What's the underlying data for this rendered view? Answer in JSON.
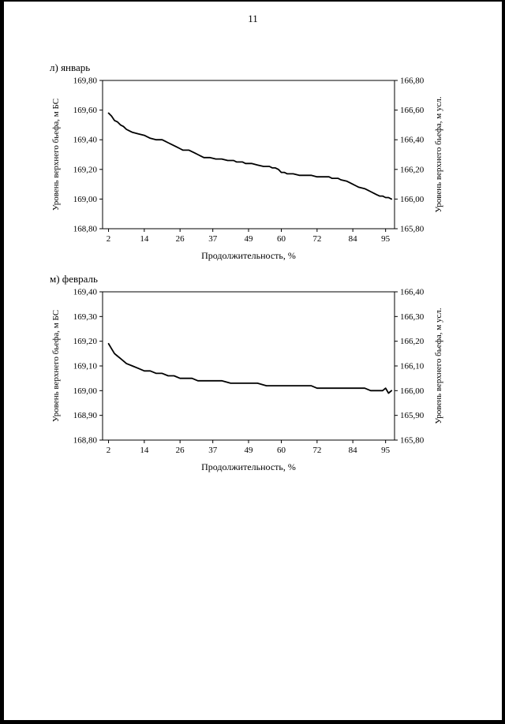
{
  "page": {
    "number": "11"
  },
  "chart_data": [
    {
      "type": "line",
      "title": "л) январь",
      "xlabel": "Продолжительность, %",
      "ylabel_left": "Уровень верхнего бьефа, м БС",
      "ylabel_right": "Уровень верхнего бьефа, м  усл.",
      "xlim": [
        0,
        98
      ],
      "xticks": [
        2,
        14,
        26,
        37,
        49,
        60,
        72,
        84,
        95
      ],
      "ylim_left": [
        168.8,
        169.8
      ],
      "ylim_right": [
        165.8,
        166.8
      ],
      "ytick_step": 0.2,
      "grid": false,
      "legend": false,
      "series": [
        {
          "points": [
            [
              2,
              169.58
            ],
            [
              3,
              169.56
            ],
            [
              4,
              169.53
            ],
            [
              5,
              169.52
            ],
            [
              6,
              169.5
            ],
            [
              7,
              169.49
            ],
            [
              8,
              169.47
            ],
            [
              9,
              169.46
            ],
            [
              10,
              169.45
            ],
            [
              12,
              169.44
            ],
            [
              14,
              169.43
            ],
            [
              15,
              169.42
            ],
            [
              16,
              169.41
            ],
            [
              18,
              169.4
            ],
            [
              20,
              169.4
            ],
            [
              21,
              169.39
            ],
            [
              22,
              169.38
            ],
            [
              23,
              169.37
            ],
            [
              24,
              169.36
            ],
            [
              25,
              169.35
            ],
            [
              26,
              169.34
            ],
            [
              27,
              169.33
            ],
            [
              29,
              169.33
            ],
            [
              31,
              169.31
            ],
            [
              32,
              169.3
            ],
            [
              33,
              169.29
            ],
            [
              34,
              169.28
            ],
            [
              36,
              169.28
            ],
            [
              38,
              169.27
            ],
            [
              40,
              169.27
            ],
            [
              42,
              169.26
            ],
            [
              44,
              169.26
            ],
            [
              45,
              169.25
            ],
            [
              47,
              169.25
            ],
            [
              48,
              169.24
            ],
            [
              50,
              169.24
            ],
            [
              52,
              169.23
            ],
            [
              54,
              169.22
            ],
            [
              56,
              169.22
            ],
            [
              57,
              169.21
            ],
            [
              58,
              169.21
            ],
            [
              59,
              169.2
            ],
            [
              60,
              169.18
            ],
            [
              61,
              169.18
            ],
            [
              62,
              169.17
            ],
            [
              64,
              169.17
            ],
            [
              66,
              169.16
            ],
            [
              68,
              169.16
            ],
            [
              70,
              169.16
            ],
            [
              72,
              169.15
            ],
            [
              74,
              169.15
            ],
            [
              76,
              169.15
            ],
            [
              77,
              169.14
            ],
            [
              79,
              169.14
            ],
            [
              80,
              169.13
            ],
            [
              82,
              169.12
            ],
            [
              83,
              169.11
            ],
            [
              84,
              169.1
            ],
            [
              85,
              169.09
            ],
            [
              86,
              169.08
            ],
            [
              88,
              169.07
            ],
            [
              89,
              169.06
            ],
            [
              90,
              169.05
            ],
            [
              91,
              169.04
            ],
            [
              92,
              169.03
            ],
            [
              93,
              169.02
            ],
            [
              94,
              169.02
            ],
            [
              95,
              169.01
            ],
            [
              96,
              169.01
            ],
            [
              97,
              169.0
            ]
          ]
        }
      ]
    },
    {
      "type": "line",
      "title": "м) февраль",
      "xlabel": "Продолжительность, %",
      "ylabel_left": "Уровень верхнего бьефа, м БС",
      "ylabel_right": "Уровень верхнего бьефа, м  усл.",
      "xlim": [
        0,
        98
      ],
      "xticks": [
        2,
        14,
        26,
        37,
        49,
        60,
        72,
        84,
        95
      ],
      "ylim_left": [
        168.8,
        169.4
      ],
      "ylim_right": [
        165.8,
        166.4
      ],
      "ytick_step": 0.1,
      "grid": false,
      "legend": false,
      "series": [
        {
          "points": [
            [
              2,
              169.19
            ],
            [
              3,
              169.17
            ],
            [
              4,
              169.15
            ],
            [
              5,
              169.14
            ],
            [
              6,
              169.13
            ],
            [
              7,
              169.12
            ],
            [
              8,
              169.11
            ],
            [
              10,
              169.1
            ],
            [
              12,
              169.09
            ],
            [
              14,
              169.08
            ],
            [
              16,
              169.08
            ],
            [
              18,
              169.07
            ],
            [
              20,
              169.07
            ],
            [
              22,
              169.06
            ],
            [
              24,
              169.06
            ],
            [
              26,
              169.05
            ],
            [
              28,
              169.05
            ],
            [
              30,
              169.05
            ],
            [
              32,
              169.04
            ],
            [
              34,
              169.04
            ],
            [
              37,
              169.04
            ],
            [
              40,
              169.04
            ],
            [
              43,
              169.03
            ],
            [
              46,
              169.03
            ],
            [
              49,
              169.03
            ],
            [
              52,
              169.03
            ],
            [
              55,
              169.02
            ],
            [
              58,
              169.02
            ],
            [
              61,
              169.02
            ],
            [
              64,
              169.02
            ],
            [
              67,
              169.02
            ],
            [
              70,
              169.02
            ],
            [
              72,
              169.01
            ],
            [
              75,
              169.01
            ],
            [
              78,
              169.01
            ],
            [
              81,
              169.01
            ],
            [
              84,
              169.01
            ],
            [
              86,
              169.01
            ],
            [
              88,
              169.01
            ],
            [
              90,
              169.0
            ],
            [
              92,
              169.0
            ],
            [
              94,
              169.0
            ],
            [
              95,
              169.01
            ],
            [
              96,
              168.99
            ],
            [
              97,
              169.0
            ]
          ]
        }
      ]
    }
  ]
}
